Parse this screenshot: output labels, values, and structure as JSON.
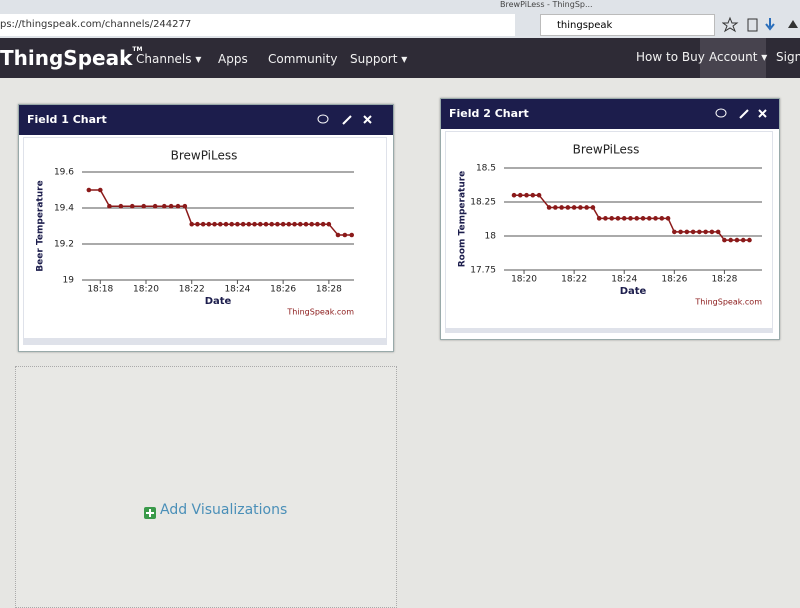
{
  "browser": {
    "url": "ps://thingspeak.com/channels/244277",
    "search": "thingspeak",
    "tab": "BrewPiLess - ThingSp..."
  },
  "nav": {
    "brand": "ThingSpeak",
    "trademark": "TM",
    "left": [
      "Channels ▾",
      "Apps",
      "Community",
      "Support ▾"
    ],
    "right": [
      "How to Buy",
      "Account ▾",
      "Sign"
    ]
  },
  "panels": [
    {
      "title": "Field 1 Chart"
    },
    {
      "title": "Field 2 Chart"
    }
  ],
  "add_visualizations": "Add Visualizations",
  "chart_data": [
    {
      "type": "line",
      "title": "BrewPiLess",
      "y_label": "Beer Temperature",
      "x_label": "Date",
      "credit": "ThingSpeak.com",
      "color": "#8b1a1a",
      "x": [
        17.5,
        18.0,
        18.4,
        18.9,
        19.4,
        19.9,
        20.4,
        20.8,
        21.1,
        21.4,
        21.7,
        22.0,
        22.25,
        22.5,
        22.75,
        23.0,
        23.25,
        23.5,
        23.75,
        24.0,
        24.25,
        24.5,
        24.75,
        25.0,
        25.25,
        25.5,
        25.75,
        26.0,
        26.25,
        26.5,
        26.75,
        27.0,
        27.25,
        27.5,
        27.75,
        28.0,
        28.4,
        28.7,
        29.0
      ],
      "values": [
        19.5,
        19.5,
        19.41,
        19.41,
        19.41,
        19.41,
        19.41,
        19.41,
        19.41,
        19.41,
        19.41,
        19.31,
        19.31,
        19.31,
        19.31,
        19.31,
        19.31,
        19.31,
        19.31,
        19.31,
        19.31,
        19.31,
        19.31,
        19.31,
        19.31,
        19.31,
        19.31,
        19.31,
        19.31,
        19.31,
        19.31,
        19.31,
        19.31,
        19.31,
        19.31,
        19.31,
        19.25,
        19.25,
        19.25
      ],
      "xlim": [
        17.2,
        29.1
      ],
      "ylim": [
        19,
        19.6
      ],
      "xticks": [
        {
          "value": 18,
          "label": "18:18"
        },
        {
          "value": 20,
          "label": "18:20"
        },
        {
          "value": 22,
          "label": "18:22"
        },
        {
          "value": 24,
          "label": "18:24"
        },
        {
          "value": 26,
          "label": "18:26"
        },
        {
          "value": 28,
          "label": "18:28"
        }
      ],
      "yticks": [
        19,
        19.2,
        19.4,
        19.6
      ],
      "grid": true
    },
    {
      "type": "line",
      "title": "BrewPiLess",
      "y_label": "Room Temperature",
      "x_label": "Date",
      "credit": "ThingSpeak.com",
      "color": "#8b1a1a",
      "x": [
        19.6,
        19.85,
        20.1,
        20.35,
        20.6,
        21.0,
        21.25,
        21.5,
        21.75,
        22.0,
        22.25,
        22.5,
        22.75,
        23.0,
        23.25,
        23.5,
        23.75,
        24.0,
        24.25,
        24.5,
        24.75,
        25.0,
        25.25,
        25.5,
        25.75,
        26.0,
        26.25,
        26.5,
        26.75,
        27.0,
        27.25,
        27.5,
        27.75,
        28.0,
        28.25,
        28.5,
        28.75,
        29.0
      ],
      "values": [
        18.3,
        18.3,
        18.3,
        18.3,
        18.3,
        18.21,
        18.21,
        18.21,
        18.21,
        18.21,
        18.21,
        18.21,
        18.21,
        18.13,
        18.13,
        18.13,
        18.13,
        18.13,
        18.13,
        18.13,
        18.13,
        18.13,
        18.13,
        18.13,
        18.13,
        18.03,
        18.03,
        18.03,
        18.03,
        18.03,
        18.03,
        18.03,
        18.03,
        17.97,
        17.97,
        17.97,
        17.97,
        17.97
      ],
      "xlim": [
        19.2,
        29.5
      ],
      "ylim": [
        17.75,
        18.5
      ],
      "xticks": [
        {
          "value": 20,
          "label": "18:20"
        },
        {
          "value": 22,
          "label": "18:22"
        },
        {
          "value": 24,
          "label": "18:24"
        },
        {
          "value": 26,
          "label": "18:26"
        },
        {
          "value": 28,
          "label": "18:28"
        }
      ],
      "yticks": [
        17.75,
        18,
        18.25,
        18.5
      ],
      "grid": true
    }
  ]
}
